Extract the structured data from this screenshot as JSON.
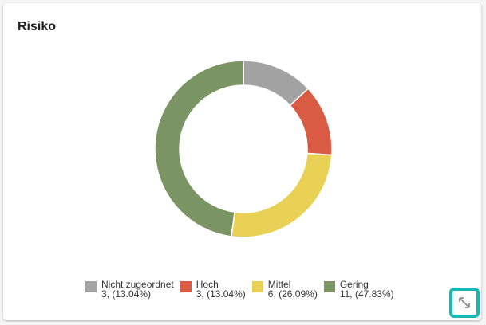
{
  "card": {
    "title": "Risiko"
  },
  "chart_data": {
    "type": "pie",
    "title": "Risiko",
    "donut": true,
    "legend": "bottom",
    "categories": [
      "Nicht zugeordnet",
      "Hoch",
      "Mittel",
      "Gering"
    ],
    "values": [
      3,
      3,
      6,
      11
    ],
    "percentages": [
      "13.04%",
      "13.04%",
      "26.09%",
      "47.83%"
    ],
    "colors": [
      "#a3a3a3",
      "#d95b43",
      "#e8d155",
      "#7a9563"
    ]
  },
  "legend": {
    "items": [
      {
        "label": "Nicht zugeordnet",
        "value_text": "3, (13.04%)",
        "color": "#a3a3a3"
      },
      {
        "label": "Hoch",
        "value_text": "3, (13.04%)",
        "color": "#d95b43"
      },
      {
        "label": "Mittel",
        "value_text": "6, (26.09%)",
        "color": "#e8d155"
      },
      {
        "label": "Gering",
        "value_text": "11, (47.83%)",
        "color": "#7a9563"
      }
    ]
  },
  "toolbar": {
    "expand_icon": "expand-arrows-icon",
    "accent_color": "#19b8b0"
  }
}
